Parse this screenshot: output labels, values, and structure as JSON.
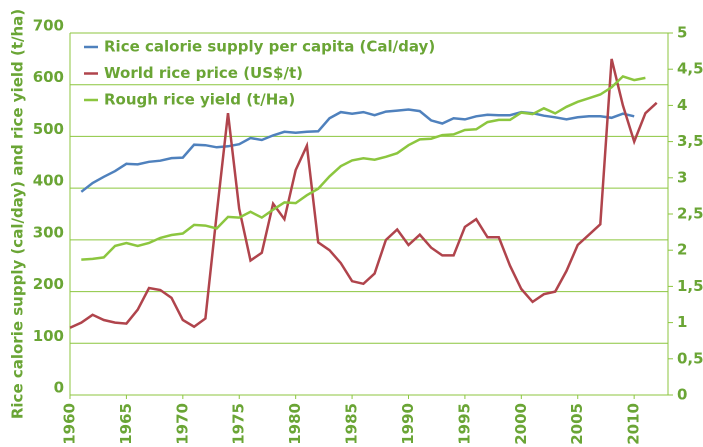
{
  "chart_data": {
    "type": "line",
    "y_label": "Rice calorie supply (cal/day) and rice yield (t/ha)",
    "xlim": [
      1960,
      2013
    ],
    "xticks": [
      1960,
      1965,
      1970,
      1975,
      1980,
      1985,
      1990,
      1995,
      2000,
      2005,
      2010
    ],
    "ylim": [
      0,
      700
    ],
    "yticks": [
      0,
      100,
      200,
      300,
      400,
      500,
      600,
      700
    ],
    "y2lim": [
      0,
      5
    ],
    "y2ticks": [
      0,
      {
        "value": 0.5,
        "label": "0,5"
      },
      1,
      {
        "value": 1.5,
        "label": "1,5"
      },
      2,
      {
        "value": 2.5,
        "label": "2,5"
      },
      3,
      {
        "value": 3.5,
        "label": "3,5"
      },
      4,
      {
        "value": 4.5,
        "label": "4,5"
      },
      5
    ],
    "grid": true,
    "legend": "upper left",
    "series": [
      {
        "name": "Rice calorie supply per capita (Cal/day)",
        "color": "#4f81bd",
        "x": [
          1961,
          1962,
          1963,
          1964,
          1965,
          1966,
          1967,
          1968,
          1969,
          1970,
          1971,
          1972,
          1973,
          1974,
          1975,
          1976,
          1977,
          1978,
          1979,
          1980,
          1981,
          1982,
          1983,
          1984,
          1985,
          1986,
          1987,
          1988,
          1989,
          1990,
          1991,
          1992,
          1993,
          1994,
          1995,
          1996,
          1997,
          1998,
          1999,
          2000,
          2001,
          2002,
          2003,
          2004,
          2005,
          2006,
          2007,
          2008,
          2009,
          2010
        ],
        "values": [
          393,
          410,
          422,
          433,
          447,
          446,
          451,
          453,
          458,
          459,
          484,
          483,
          479,
          481,
          485,
          497,
          493,
          502,
          509,
          507,
          509,
          510,
          535,
          547,
          544,
          547,
          541,
          548,
          550,
          552,
          549,
          531,
          525,
          535,
          533,
          539,
          542,
          541,
          541,
          547,
          545,
          540,
          537,
          533,
          537,
          539,
          539,
          536,
          544,
          539
        ]
      },
      {
        "name": "World rice price (US$/t)",
        "color": "#b0444c",
        "x": [
          1960,
          1961,
          1962,
          1963,
          1964,
          1965,
          1966,
          1967,
          1968,
          1969,
          1970,
          1971,
          1972,
          1973,
          1974,
          1975,
          1976,
          1977,
          1978,
          1979,
          1980,
          1981,
          1982,
          1983,
          1984,
          1985,
          1986,
          1987,
          1988,
          1989,
          1990,
          1991,
          1992,
          1993,
          1994,
          1995,
          1996,
          1997,
          1998,
          1999,
          2000,
          2001,
          2002,
          2003,
          2004,
          2005,
          2006,
          2007,
          2008,
          2009,
          2010,
          2011,
          2012
        ],
        "values": [
          130,
          140,
          155,
          145,
          140,
          138,
          165,
          207,
          203,
          188,
          145,
          132,
          148,
          350,
          545,
          360,
          260,
          275,
          370,
          340,
          435,
          482,
          295,
          280,
          255,
          220,
          215,
          235,
          300,
          320,
          290,
          310,
          285,
          270,
          270,
          325,
          340,
          305,
          305,
          250,
          205,
          180,
          195,
          200,
          240,
          290,
          310,
          330,
          650,
          560,
          490,
          545,
          565
        ]
      },
      {
        "name": "Rough rice yield (t/Ha)",
        "color": "#8cc63f",
        "axis": "y2",
        "x": [
          1961,
          1962,
          1963,
          1964,
          1965,
          1966,
          1967,
          1968,
          1969,
          1970,
          1971,
          1972,
          1973,
          1974,
          1975,
          1976,
          1977,
          1978,
          1979,
          1980,
          1981,
          1982,
          1983,
          1984,
          1985,
          1986,
          1987,
          1988,
          1989,
          1990,
          1991,
          1992,
          1993,
          1994,
          1995,
          1996,
          1997,
          1998,
          1999,
          2000,
          2001,
          2002,
          2003,
          2004,
          2005,
          2006,
          2007,
          2008,
          2009,
          2010,
          2011
        ],
        "values": [
          1.87,
          1.88,
          1.9,
          2.06,
          2.1,
          2.06,
          2.1,
          2.17,
          2.21,
          2.23,
          2.35,
          2.34,
          2.3,
          2.46,
          2.45,
          2.53,
          2.45,
          2.56,
          2.66,
          2.65,
          2.76,
          2.85,
          3.02,
          3.16,
          3.24,
          3.27,
          3.25,
          3.29,
          3.34,
          3.45,
          3.53,
          3.54,
          3.59,
          3.6,
          3.66,
          3.67,
          3.77,
          3.8,
          3.8,
          3.9,
          3.88,
          3.96,
          3.89,
          3.98,
          4.05,
          4.1,
          4.15,
          4.25,
          4.4,
          4.35,
          4.38
        ]
      }
    ]
  }
}
